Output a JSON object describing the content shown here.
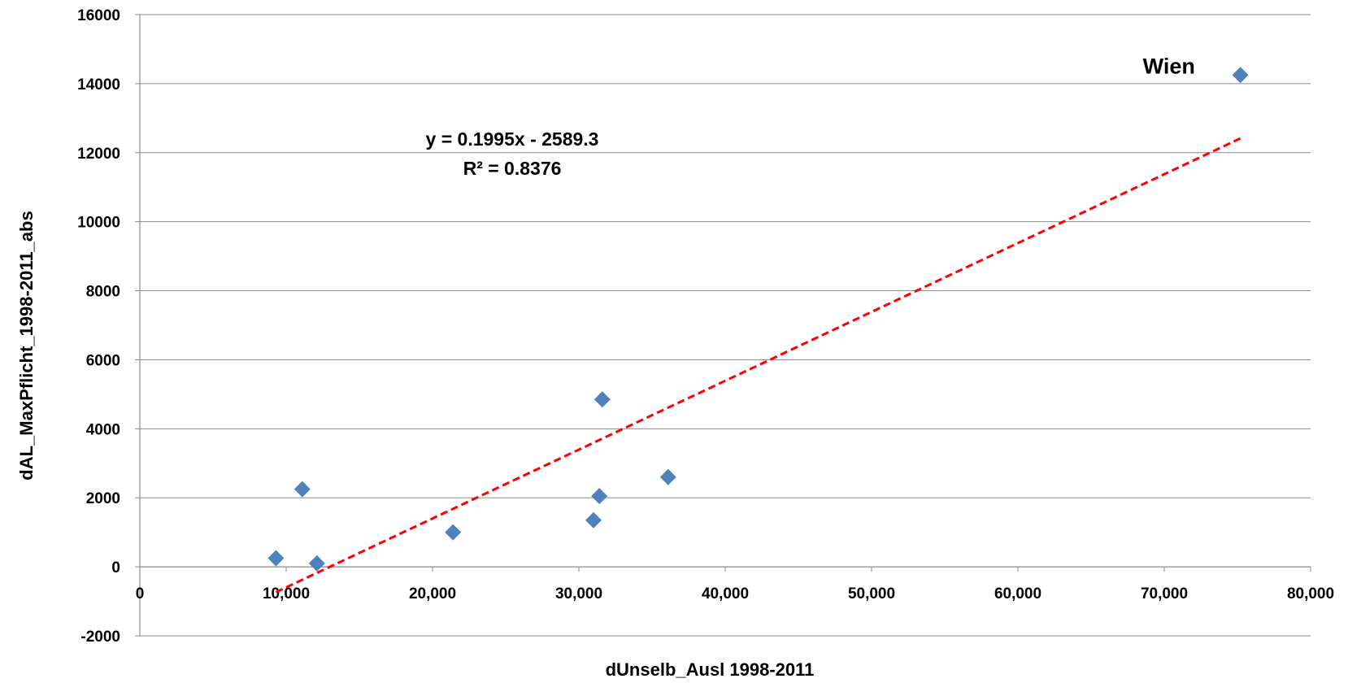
{
  "chart_data": {
    "type": "scatter",
    "xlabel": "dUnselb_Ausl 1998-2011",
    "ylabel": "dAL_MaxPflicht_1998-2011_abs",
    "xlim": [
      0,
      80000
    ],
    "ylim": [
      -2000,
      16000
    ],
    "x_ticks": [
      0,
      10000,
      20000,
      30000,
      40000,
      50000,
      60000,
      70000,
      80000
    ],
    "x_tick_labels": [
      "0",
      "10,000",
      "20,000",
      "30,000",
      "40,000",
      "50,000",
      "60,000",
      "70,000",
      "80,000"
    ],
    "y_ticks": [
      -2000,
      0,
      2000,
      4000,
      6000,
      8000,
      10000,
      12000,
      14000,
      16000
    ],
    "y_tick_labels": [
      "-2000",
      "0",
      "2000",
      "4000",
      "6000",
      "8000",
      "10000",
      "12000",
      "14000",
      "16000"
    ],
    "grid": "horizontal",
    "legend": "none",
    "series": [
      {
        "marker": "diamond",
        "color": "#4F81BD",
        "points": [
          {
            "x": 9300,
            "y": 250
          },
          {
            "x": 11100,
            "y": 2250
          },
          {
            "x": 12100,
            "y": 100
          },
          {
            "x": 21400,
            "y": 1000
          },
          {
            "x": 31000,
            "y": 1350
          },
          {
            "x": 31400,
            "y": 2050
          },
          {
            "x": 31600,
            "y": 4850
          },
          {
            "x": 36100,
            "y": 2600
          },
          {
            "x": 75200,
            "y": 14250
          }
        ]
      }
    ],
    "trendline": {
      "type": "linear",
      "slope": 0.1995,
      "intercept": -2589.3,
      "x_range": [
        9300,
        75200
      ],
      "color": "#FF0000",
      "style": "dashed",
      "equation_text": "y = 0.1995x - 2589.3",
      "r2_text": "R² = 0.8376"
    },
    "annotations": [
      {
        "text": "Wien",
        "x": 75200,
        "y": 14250
      }
    ]
  }
}
